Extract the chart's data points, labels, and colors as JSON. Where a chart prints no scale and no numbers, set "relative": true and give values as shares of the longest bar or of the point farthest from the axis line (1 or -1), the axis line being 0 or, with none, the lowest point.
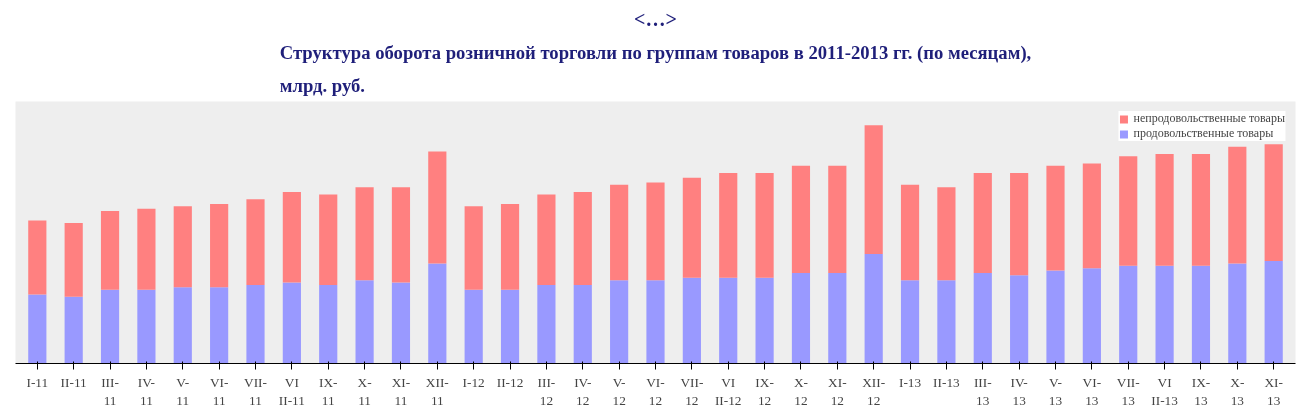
{
  "chart_data": {
    "type": "bar",
    "stacked": true,
    "relative": true,
    "title": "Структура оборота розничной торговли по группам товаров в 2011-2013 гг. (по месяцам),\nмлрд. руб.",
    "annotations": [
      "<…>"
    ],
    "categories": [
      "I-11",
      "II-11",
      "III-\n11",
      "IV-\n11",
      "V-\n11",
      "VI-\n11",
      "VII-\n11",
      "VI\nII-11",
      "IX-\n11",
      "X-\n11",
      "XI-\n11",
      "XII-\n11",
      "I-12",
      "II-12",
      "III-\n12",
      "IV-\n12",
      "V-\n12",
      "VI-\n12",
      "VII-\n12",
      "VI\nII-12",
      "IX-\n12",
      "X-\n12",
      "XI-\n12",
      "XII-\n12",
      "I-13",
      "II-13",
      "III-\n13",
      "IV-\n13",
      "V-\n13",
      "VI-\n13",
      "VII-\n13",
      "VI\nII-13",
      "IX-\n13",
      "X-\n13",
      "XI-\n13"
    ],
    "series": [
      {
        "name": "продовольственные товары",
        "color": "#9999ff",
        "values": [
          0.29,
          0.28,
          0.31,
          0.31,
          0.32,
          0.32,
          0.33,
          0.34,
          0.33,
          0.35,
          0.34,
          0.42,
          0.31,
          0.31,
          0.33,
          0.33,
          0.35,
          0.35,
          0.36,
          0.36,
          0.36,
          0.38,
          0.38,
          0.46,
          0.35,
          0.35,
          0.38,
          0.37,
          0.39,
          0.4,
          0.41,
          0.41,
          0.41,
          0.42,
          0.43
        ]
      },
      {
        "name": "непродовольственные товары",
        "color": "#ff8080",
        "values": [
          0.31,
          0.31,
          0.33,
          0.34,
          0.34,
          0.35,
          0.36,
          0.38,
          0.38,
          0.39,
          0.4,
          0.47,
          0.35,
          0.36,
          0.38,
          0.39,
          0.4,
          0.41,
          0.42,
          0.44,
          0.44,
          0.45,
          0.45,
          0.54,
          0.4,
          0.39,
          0.42,
          0.43,
          0.44,
          0.44,
          0.46,
          0.47,
          0.47,
          0.49,
          0.49
        ]
      }
    ],
    "legend": "top right",
    "grid": false
  }
}
